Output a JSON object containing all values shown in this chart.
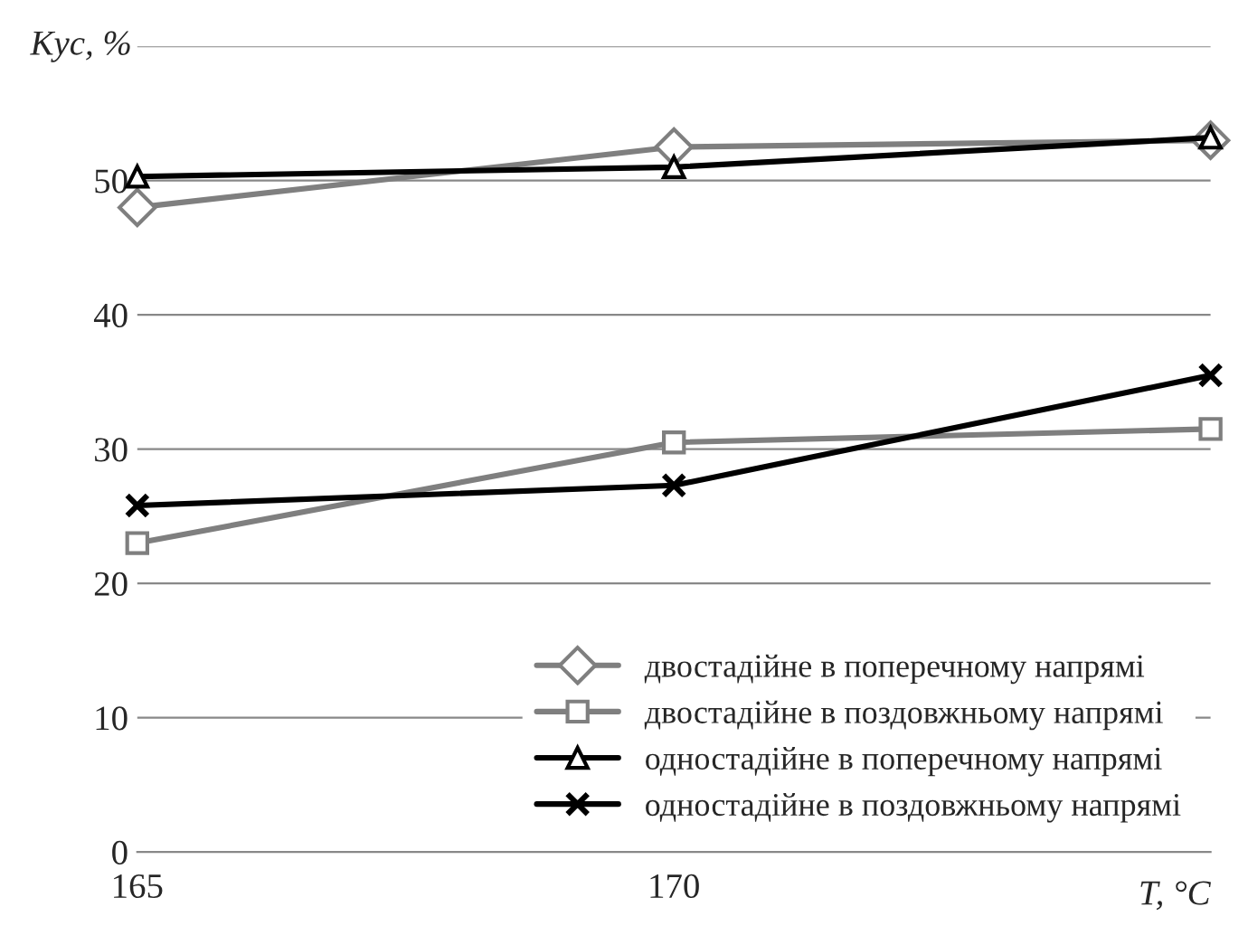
{
  "chart_data": {
    "type": "line",
    "xlabel": "T, °C",
    "ylabel": "Kус, %",
    "x": [
      165,
      170,
      175
    ],
    "series": [
      {
        "name": "двостадійне в поперечному напрямі",
        "color": "#7f7f7f",
        "marker": "diamond",
        "values": [
          48,
          52.5,
          53
        ]
      },
      {
        "name": "двостадійне в поздовжньому напрямі",
        "color": "#7f7f7f",
        "marker": "square",
        "values": [
          23,
          30.5,
          31.5
        ]
      },
      {
        "name": "одностадійне в поперечному напрямі",
        "color": "#000000",
        "marker": "triangle",
        "values": [
          50.3,
          51,
          53.2
        ]
      },
      {
        "name": "одностадійне в поздовжньому напрямі",
        "color": "#000000",
        "marker": "cross",
        "values": [
          25.8,
          27.3,
          35.5
        ]
      }
    ],
    "xlim": [
      165,
      175
    ],
    "xticks": [
      165,
      170
    ],
    "ylim": [
      0,
      60
    ],
    "yticks": [
      0,
      10,
      20,
      30,
      40,
      50,
      {
        "value": 60,
        "label": null
      }
    ],
    "grid": "y",
    "legend": "bottom right",
    "line_style": "solid"
  }
}
